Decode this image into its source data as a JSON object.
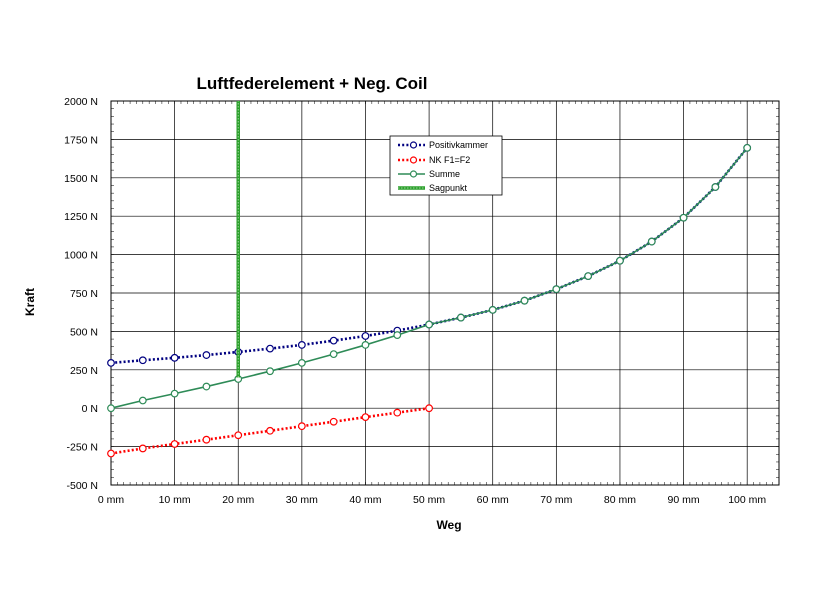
{
  "chart_data": {
    "type": "line",
    "title": "Luftfederelement + Neg. Coil",
    "xlabel": "Weg",
    "ylabel": "Kraft",
    "xlim": [
      0,
      105
    ],
    "ylim": [
      -500,
      2000
    ],
    "x_ticks": [
      0,
      10,
      20,
      30,
      40,
      50,
      60,
      70,
      80,
      90,
      100
    ],
    "x_tick_labels": [
      "0 mm",
      "10 mm",
      "20 mm",
      "30 mm",
      "40 mm",
      "50 mm",
      "60 mm",
      "70 mm",
      "80 mm",
      "90 mm",
      "100 mm"
    ],
    "y_ticks": [
      -500,
      -250,
      0,
      250,
      500,
      750,
      1000,
      1250,
      1500,
      1750,
      2000
    ],
    "y_tick_labels": [
      "-500 N",
      "-250 N",
      "0 N",
      "250 N",
      "500 N",
      "750 N",
      "1000 N",
      "1250 N",
      "1500 N",
      "1750 N",
      "2000 N"
    ],
    "grid": true,
    "legend_position": "top-right",
    "series": [
      {
        "name": "Positivkammer",
        "color": "#000080",
        "style": "dotted",
        "marker": "circle",
        "x": [
          0,
          5,
          10,
          15,
          20,
          25,
          30,
          35,
          40,
          45,
          50,
          55,
          60,
          65,
          70,
          75,
          80,
          85,
          90,
          95,
          100
        ],
        "y": [
          295,
          312,
          328,
          346,
          366,
          388,
          412,
          440,
          470,
          505,
          545,
          590,
          640,
          700,
          775,
          860,
          960,
          1085,
          1240,
          1440,
          1695
        ]
      },
      {
        "name": "NK F1=F2",
        "color": "#ff0000",
        "style": "dotted",
        "marker": "circle",
        "x": [
          0,
          5,
          10,
          15,
          20,
          25,
          30,
          35,
          40,
          45,
          50
        ],
        "y": [
          -295,
          -262,
          -233,
          -205,
          -176,
          -147,
          -117,
          -88,
          -58,
          -29,
          0
        ]
      },
      {
        "name": "Summe",
        "color": "#2e8b57",
        "style": "solid",
        "marker": "circle",
        "x": [
          0,
          5,
          10,
          15,
          20,
          25,
          30,
          35,
          40,
          45,
          50,
          55,
          60,
          65,
          70,
          75,
          80,
          85,
          90,
          95,
          100
        ],
        "y": [
          0,
          50,
          95,
          141,
          190,
          241,
          295,
          352,
          412,
          476,
          545,
          590,
          640,
          700,
          775,
          860,
          960,
          1085,
          1240,
          1440,
          1695
        ]
      },
      {
        "name": "Sagpunkt",
        "color": "#2ca02c",
        "style": "thick",
        "marker": "none",
        "x": [
          20,
          20
        ],
        "y": [
          200,
          2000
        ]
      }
    ]
  }
}
